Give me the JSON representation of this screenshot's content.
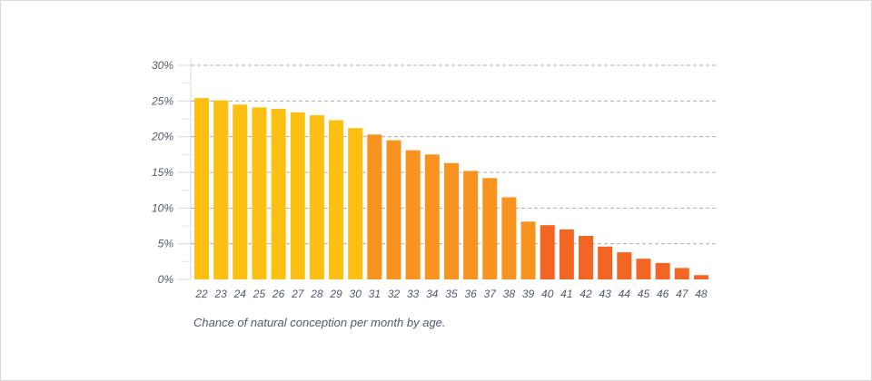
{
  "chart_data": {
    "type": "bar",
    "caption": "Chance of natural conception per month by age.",
    "categories": [
      "22",
      "23",
      "24",
      "25",
      "26",
      "27",
      "28",
      "29",
      "30",
      "31",
      "32",
      "33",
      "34",
      "35",
      "36",
      "37",
      "38",
      "39",
      "40",
      "41",
      "42",
      "43",
      "44",
      "45",
      "46",
      "47",
      "48"
    ],
    "values": [
      25.4,
      25.1,
      24.5,
      24.1,
      23.9,
      23.4,
      23.0,
      22.3,
      21.2,
      20.3,
      19.5,
      18.1,
      17.5,
      16.3,
      15.2,
      14.2,
      11.5,
      8.1,
      7.6,
      7.0,
      6.1,
      4.6,
      3.8,
      2.9,
      2.3,
      1.6,
      0.6
    ],
    "bar_colors": [
      "#fcbf12",
      "#fcbf12",
      "#fcbf12",
      "#fcbf12",
      "#fcbf12",
      "#fcbf12",
      "#fcbf12",
      "#fcbf12",
      "#fcbf12",
      "#f7931e",
      "#f7931e",
      "#f7931e",
      "#f7931e",
      "#f7931e",
      "#f7931e",
      "#f7931e",
      "#f7931e",
      "#f7931e",
      "#f26522",
      "#f26522",
      "#f26522",
      "#f26522",
      "#f26522",
      "#f26522",
      "#f26522",
      "#f26522",
      "#f26522"
    ],
    "yticks": [
      "0%",
      "5%",
      "10%",
      "15%",
      "20%",
      "25%",
      "30%"
    ],
    "ylim": [
      0,
      30
    ],
    "grid": "horizontal dashed",
    "xlabel": "",
    "ylabel": ""
  }
}
